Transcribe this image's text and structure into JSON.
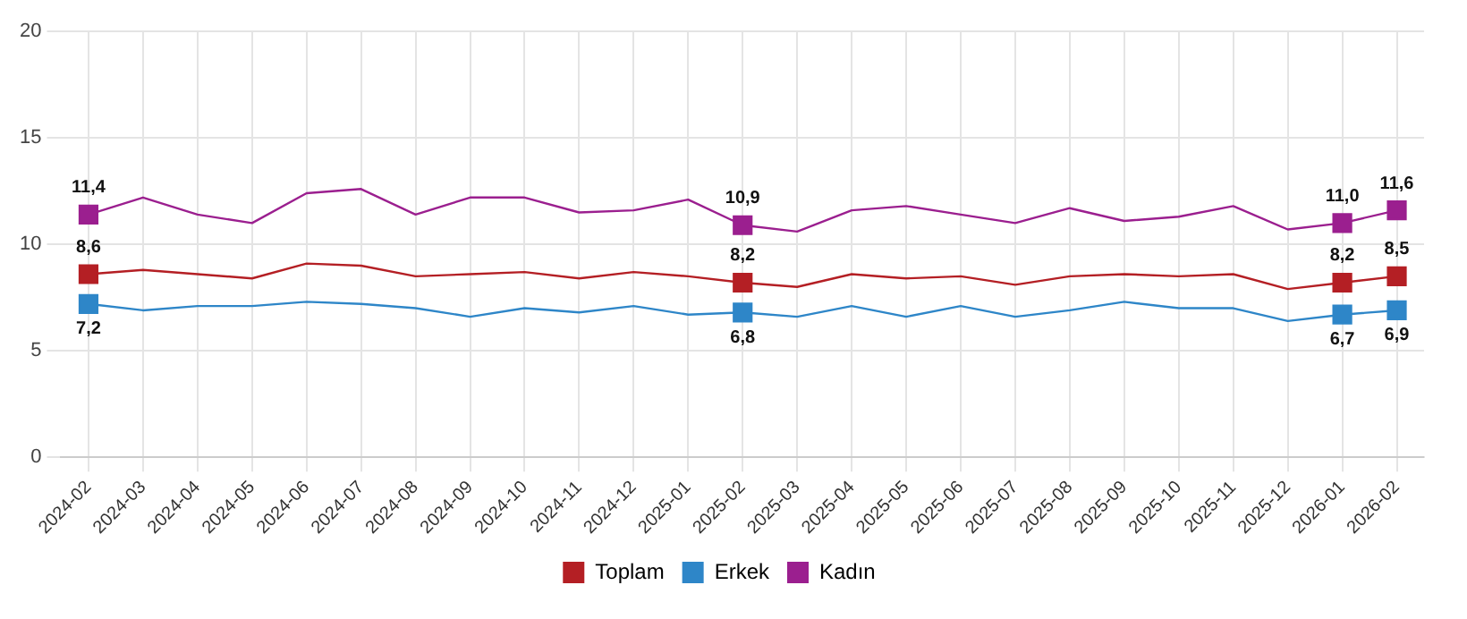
{
  "chart_data": {
    "type": "line",
    "categories": [
      "2024-02",
      "2024-03",
      "2024-04",
      "2024-05",
      "2024-06",
      "2024-07",
      "2024-08",
      "2024-09",
      "2024-10",
      "2024-11",
      "2024-12",
      "2025-01",
      "2025-02",
      "2025-03",
      "2025-04",
      "2025-05",
      "2025-06",
      "2025-07",
      "2025-08",
      "2025-09",
      "2025-10",
      "2025-11",
      "2025-12",
      "2026-01",
      "2026-02"
    ],
    "series": [
      {
        "name": "Toplam",
        "color": "#b41f24",
        "values": [
          8.6,
          8.8,
          8.6,
          8.4,
          9.1,
          9.0,
          8.5,
          8.6,
          8.7,
          8.4,
          8.7,
          8.5,
          8.2,
          8.0,
          8.6,
          8.4,
          8.5,
          8.1,
          8.5,
          8.6,
          8.5,
          8.6,
          7.9,
          8.2,
          8.5
        ],
        "value_labels": [
          "8,6",
          null,
          null,
          null,
          null,
          null,
          null,
          null,
          null,
          null,
          null,
          null,
          "8,2",
          null,
          null,
          null,
          null,
          null,
          null,
          null,
          null,
          null,
          null,
          "8,2",
          "8,5"
        ]
      },
      {
        "name": "Erkek",
        "color": "#2e86c8",
        "values": [
          7.2,
          6.9,
          7.1,
          7.1,
          7.3,
          7.2,
          7.0,
          6.6,
          7.0,
          6.8,
          7.1,
          6.7,
          6.8,
          6.6,
          7.1,
          6.6,
          7.1,
          6.6,
          6.9,
          7.3,
          7.0,
          7.0,
          6.4,
          6.7,
          6.9
        ],
        "value_labels": [
          "7,2",
          null,
          null,
          null,
          null,
          null,
          null,
          null,
          null,
          null,
          null,
          null,
          "6,8",
          null,
          null,
          null,
          null,
          null,
          null,
          null,
          null,
          null,
          null,
          "6,7",
          "6,9"
        ]
      },
      {
        "name": "Kadın",
        "color": "#9b1f8f",
        "values": [
          11.4,
          12.2,
          11.4,
          11.0,
          12.4,
          12.6,
          11.4,
          12.2,
          12.2,
          11.5,
          11.6,
          12.1,
          10.9,
          10.6,
          11.6,
          11.8,
          11.4,
          11.0,
          11.7,
          11.1,
          11.3,
          11.8,
          10.7,
          11.0,
          11.6
        ],
        "value_labels": [
          "11,4",
          null,
          null,
          null,
          null,
          null,
          null,
          null,
          null,
          null,
          null,
          null,
          "10,9",
          null,
          null,
          null,
          null,
          null,
          null,
          null,
          null,
          null,
          null,
          "11,0",
          "11,6"
        ]
      }
    ],
    "ylim": [
      0,
      20
    ],
    "yticks": [
      0,
      5,
      10,
      15,
      20
    ],
    "grid": true,
    "legend": "bottom",
    "line_style": "solid"
  }
}
